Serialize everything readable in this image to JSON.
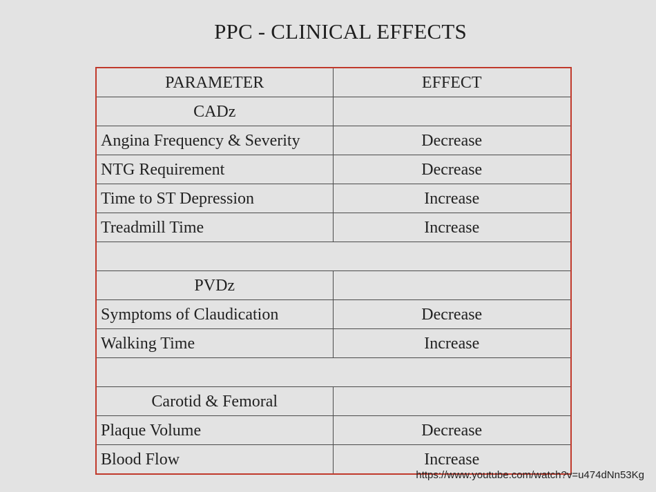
{
  "title": "PPC - CLINICAL EFFECTS",
  "table": {
    "header": {
      "parameter": "PARAMETER",
      "effect": "EFFECT"
    },
    "groups": [
      {
        "name": "CADz",
        "rows": [
          {
            "parameter": "Angina Frequency & Severity",
            "effect": "Decrease"
          },
          {
            "parameter": "NTG Requirement",
            "effect": "Decrease"
          },
          {
            "parameter": "Time to ST Depression",
            "effect": "Increase"
          },
          {
            "parameter": "Treadmill Time",
            "effect": "Increase"
          }
        ]
      },
      {
        "name": "PVDz",
        "rows": [
          {
            "parameter": "Symptoms of Claudication",
            "effect": "Decrease"
          },
          {
            "parameter": "Walking Time",
            "effect": "Increase"
          }
        ]
      },
      {
        "name": "Carotid & Femoral",
        "rows": [
          {
            "parameter": "Plaque Volume",
            "effect": "Decrease"
          },
          {
            "parameter": "Blood Flow",
            "effect": "Increase"
          }
        ]
      }
    ]
  },
  "source_url": "https://www.youtube.com/watch?v=u474dNn53Kg",
  "colors": {
    "background": "#e3e3e3",
    "table_border": "#c0392b",
    "text": "#222222"
  }
}
